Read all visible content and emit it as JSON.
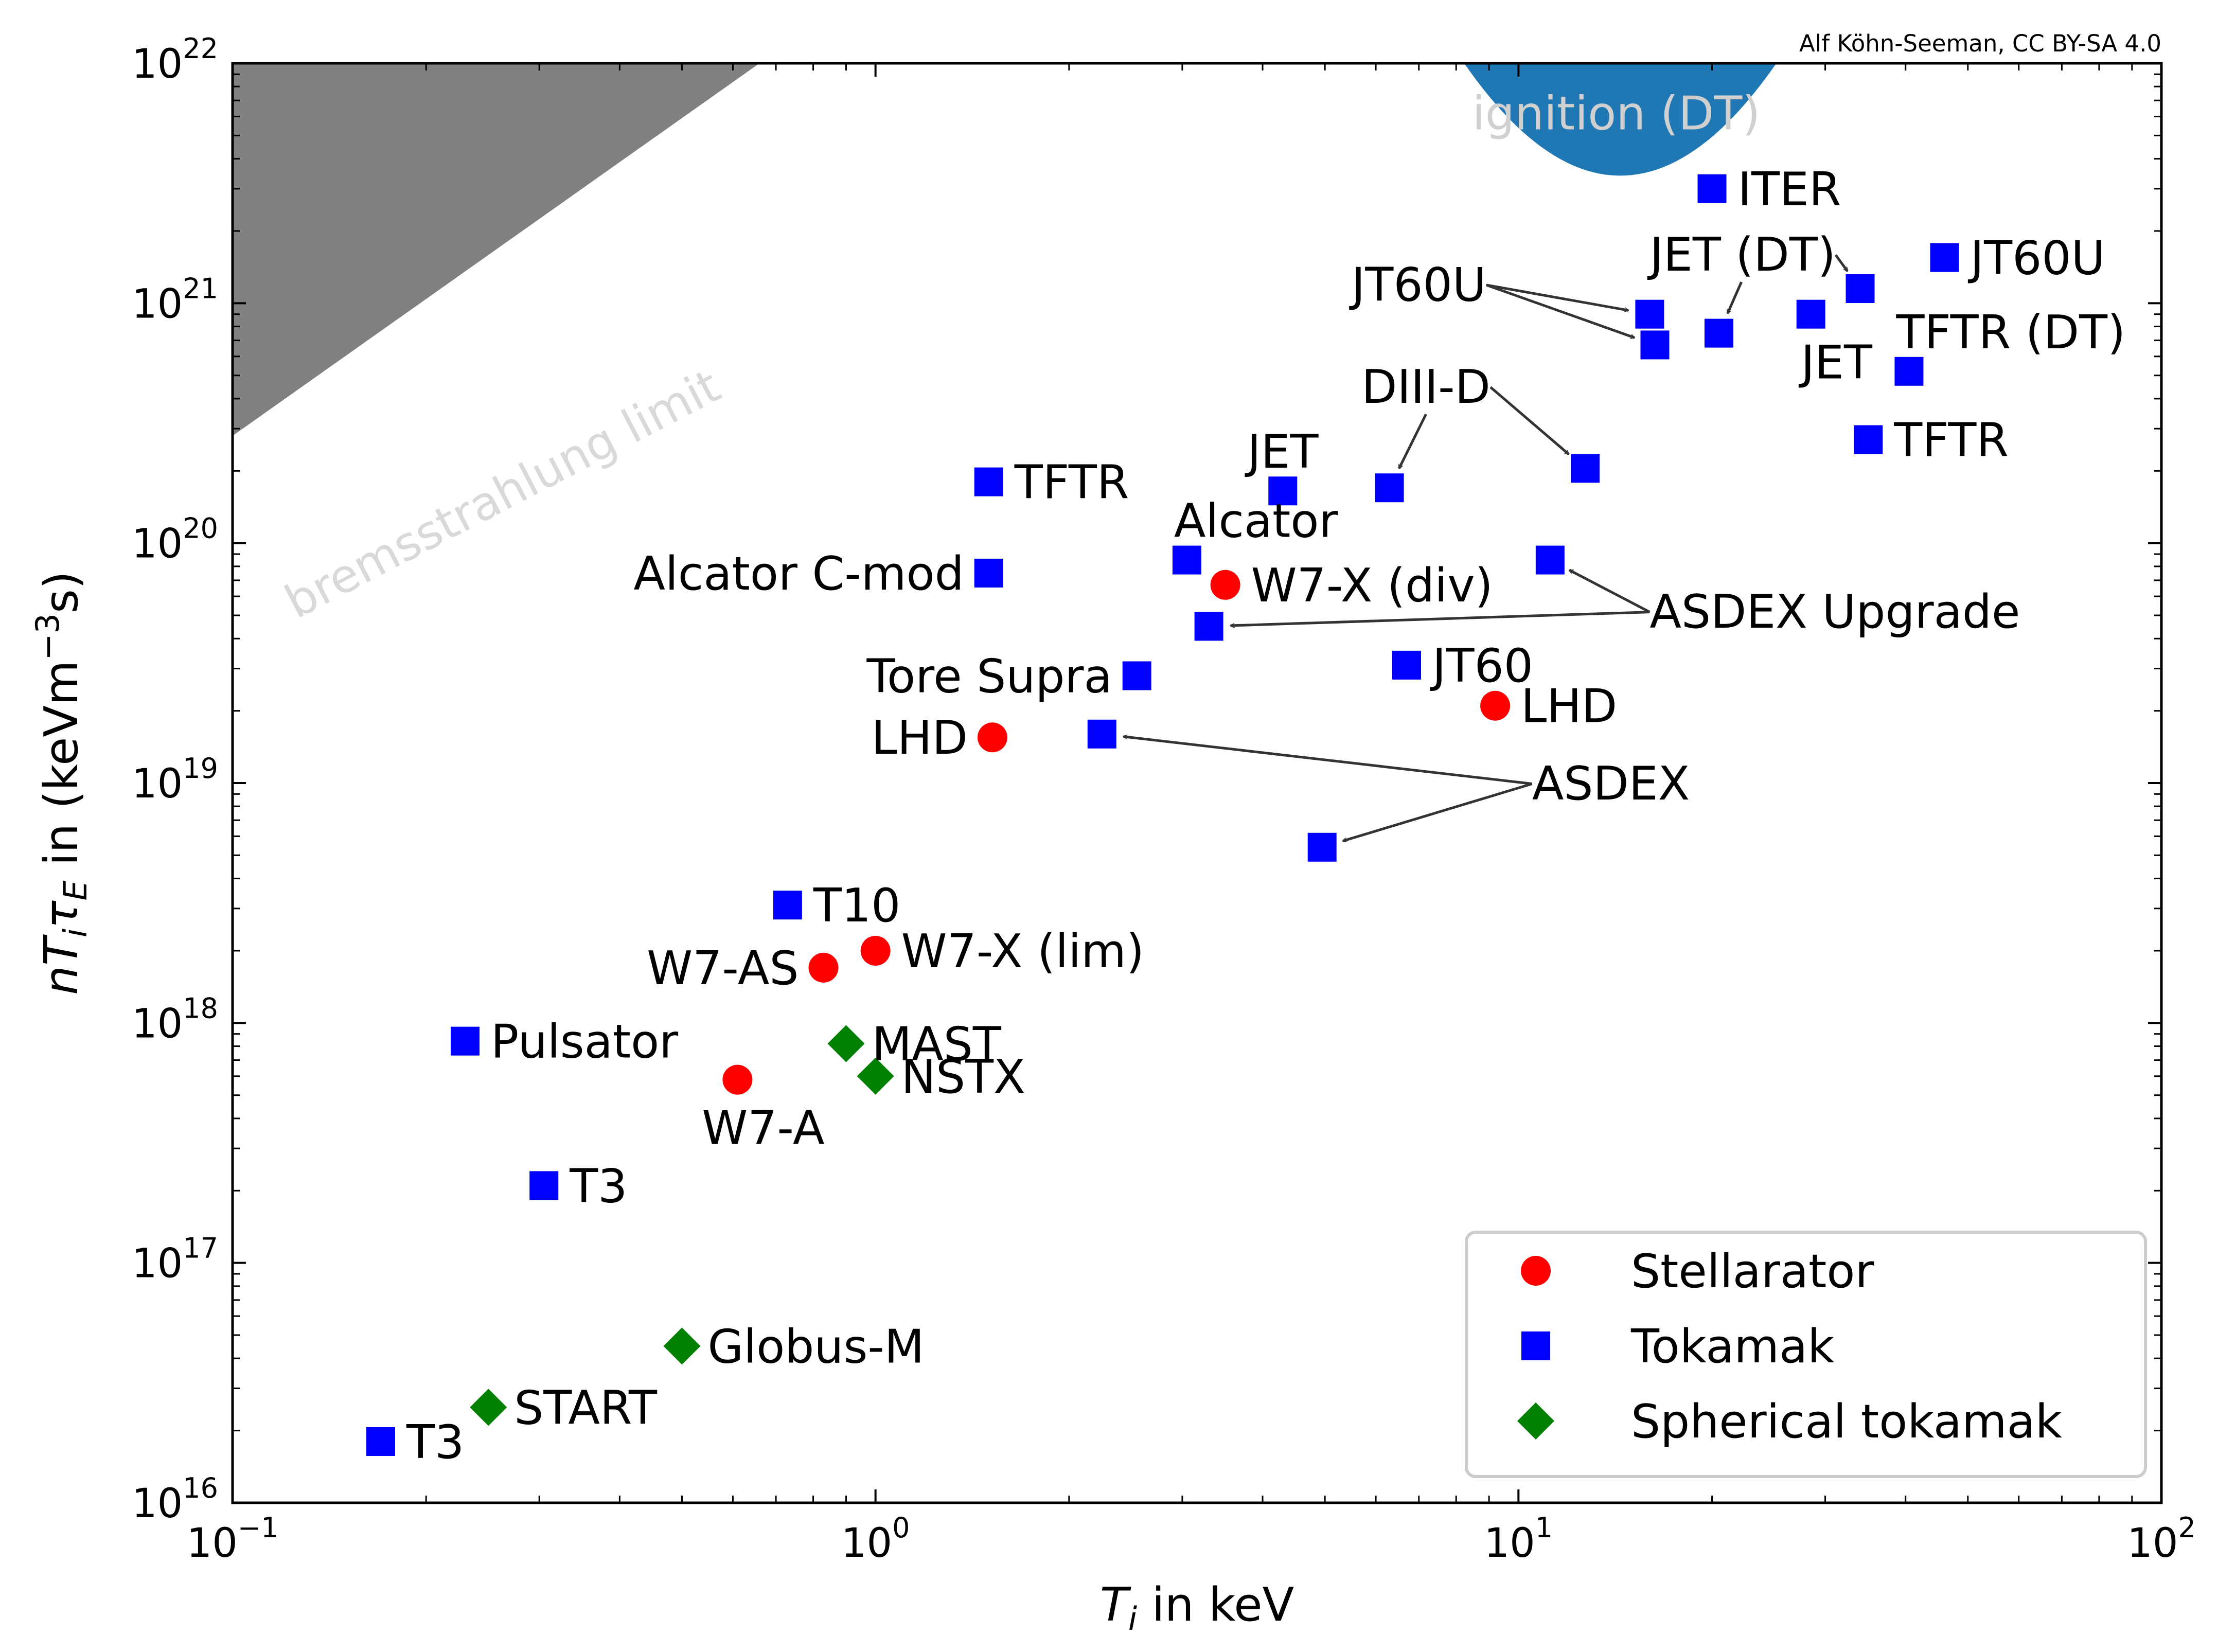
{
  "credit": "Alf Köhn-Seeman, CC BY-SA 4.0",
  "chart_data": {
    "type": "scatter",
    "x_scale": "log",
    "y_scale": "log",
    "xlim": [
      0.1,
      100
    ],
    "ylim": [
      1e+16,
      1e+22
    ],
    "xlabel": {
      "main": "T",
      "sub": "i",
      "rest": " in keV"
    },
    "ylabel": {
      "main": "nT",
      "sub1": "i",
      "tau": "τ",
      "sub2": "E",
      "rest": " in (keVm",
      "sup": "−3",
      "end": "s)"
    },
    "x_ticks": [
      {
        "value": 0.1,
        "base": "10",
        "exp": "−1"
      },
      {
        "value": 1,
        "base": "10",
        "exp": "0"
      },
      {
        "value": 10,
        "base": "10",
        "exp": "1"
      },
      {
        "value": 100,
        "base": "10",
        "exp": "2"
      }
    ],
    "y_ticks": [
      {
        "value": 1e+16,
        "base": "10",
        "exp": "16"
      },
      {
        "value": 1e+17,
        "base": "10",
        "exp": "17"
      },
      {
        "value": 1e+18,
        "base": "10",
        "exp": "18"
      },
      {
        "value": 1e+19,
        "base": "10",
        "exp": "19"
      },
      {
        "value": 1e+20,
        "base": "10",
        "exp": "20"
      },
      {
        "value": 1e+21,
        "base": "10",
        "exp": "21"
      },
      {
        "value": 1e+22,
        "base": "10",
        "exp": "22"
      }
    ],
    "regions": [
      {
        "name": "bremsstrahlung limit",
        "color": "#808080",
        "label_color": "#d9d9d9"
      },
      {
        "name": "ignition (DT)",
        "color": "#1f77b4",
        "label_color": "#d0d0d0"
      }
    ],
    "series": [
      {
        "name": "Stellarator",
        "marker": "circle",
        "color": "#ff0000",
        "points": [
          {
            "x": 3.5,
            "y": 6.7e+19,
            "label": "W7-X (div)",
            "anchor": "right"
          },
          {
            "x": 9.2,
            "y": 2.1e+19,
            "label": "LHD",
            "anchor": "right"
          },
          {
            "x": 1.52,
            "y": 1.55e+19,
            "label": "LHD",
            "anchor": "left"
          },
          {
            "x": 1.0,
            "y": 2e+18,
            "label": "W7-X (lim)",
            "anchor": "right"
          },
          {
            "x": 0.83,
            "y": 1.7e+18,
            "label": "W7-AS",
            "anchor": "left"
          },
          {
            "x": 0.61,
            "y": 5.8e+17,
            "label": "W7-A",
            "anchor": "below"
          }
        ]
      },
      {
        "name": "Tokamak",
        "marker": "square",
        "color": "#0000ff",
        "points": [
          {
            "x": 20,
            "y": 3e+21,
            "label": "ITER",
            "anchor": "right"
          },
          {
            "x": 46,
            "y": 1.55e+21,
            "label": "JT60U",
            "anchor": "right"
          },
          {
            "x": 34,
            "y": 1.15e+21,
            "label": "",
            "anchor": "none"
          },
          {
            "x": 16,
            "y": 9e+20,
            "label": "",
            "anchor": "none"
          },
          {
            "x": 16.3,
            "y": 6.7e+20,
            "label": "",
            "anchor": "none"
          },
          {
            "x": 20.5,
            "y": 7.5e+20,
            "label": "",
            "anchor": "none"
          },
          {
            "x": 28.5,
            "y": 9e+20,
            "label": "JET",
            "anchor": "below"
          },
          {
            "x": 40.5,
            "y": 5.2e+20,
            "label": "TFTR (DT)",
            "anchor": "above-right"
          },
          {
            "x": 35,
            "y": 2.7e+20,
            "label": "TFTR",
            "anchor": "right"
          },
          {
            "x": 12.7,
            "y": 2.05e+20,
            "label": "",
            "anchor": "none"
          },
          {
            "x": 6.3,
            "y": 1.7e+20,
            "label": "",
            "anchor": "none"
          },
          {
            "x": 4.3,
            "y": 1.65e+20,
            "label": "JET",
            "anchor": "above"
          },
          {
            "x": 1.5,
            "y": 1.8e+20,
            "label": "TFTR",
            "anchor": "right"
          },
          {
            "x": 1.5,
            "y": 7.5e+19,
            "label": "Alcator C-mod",
            "anchor": "left"
          },
          {
            "x": 3.05,
            "y": 8.5e+19,
            "label": "Alcator",
            "anchor": "above-right"
          },
          {
            "x": 11.2,
            "y": 8.5e+19,
            "label": "",
            "anchor": "none"
          },
          {
            "x": 3.3,
            "y": 4.5e+19,
            "label": "",
            "anchor": "none"
          },
          {
            "x": 6.7,
            "y": 3.1e+19,
            "label": "JT60",
            "anchor": "right"
          },
          {
            "x": 2.55,
            "y": 2.8e+19,
            "label": "Tore Supra",
            "anchor": "left"
          },
          {
            "x": 2.25,
            "y": 1.6e+19,
            "label": "",
            "anchor": "none"
          },
          {
            "x": 4.95,
            "y": 5.4e+18,
            "label": "",
            "anchor": "none"
          },
          {
            "x": 0.73,
            "y": 3.1e+18,
            "label": "T10",
            "anchor": "right"
          },
          {
            "x": 0.23,
            "y": 8.4e+17,
            "label": "Pulsator",
            "anchor": "right"
          },
          {
            "x": 0.305,
            "y": 2.1e+17,
            "label": "T3",
            "anchor": "right"
          },
          {
            "x": 0.17,
            "y": 1.8e+16,
            "label": "T3",
            "anchor": "right"
          }
        ]
      },
      {
        "name": "Spherical tokamak",
        "marker": "diamond",
        "color": "#008000",
        "points": [
          {
            "x": 0.9,
            "y": 8.2e+17,
            "label": "MAST",
            "anchor": "right"
          },
          {
            "x": 1.0,
            "y": 6e+17,
            "label": "NSTX",
            "anchor": "right"
          },
          {
            "x": 0.5,
            "y": 4.5e+16,
            "label": "Globus-M",
            "anchor": "right"
          },
          {
            "x": 0.25,
            "y": 2.5e+16,
            "label": "START",
            "anchor": "right"
          }
        ]
      }
    ],
    "annotations": [
      {
        "text": "JT60U",
        "x": 5.5,
        "y": 1.2e+21,
        "targets": [
          {
            "x": 16,
            "y": 9e+20
          },
          {
            "x": 16.3,
            "y": 6.7e+20
          }
        ]
      },
      {
        "text": "JET (DT)",
        "x": 16,
        "y": 1.6e+21,
        "targets": [
          {
            "x": 20.5,
            "y": 7.5e+20
          },
          {
            "x": 34,
            "y": 1.15e+21
          }
        ]
      },
      {
        "text": "DIII-D",
        "x": 5.7,
        "y": 4.5e+20,
        "targets": [
          {
            "x": 6.3,
            "y": 1.7e+20
          },
          {
            "x": 12.7,
            "y": 2.05e+20
          }
        ]
      },
      {
        "text": "ASDEX Upgrade",
        "x": 16,
        "y": 5.2e+19,
        "targets": [
          {
            "x": 11.2,
            "y": 8.5e+19
          },
          {
            "x": 3.3,
            "y": 4.5e+19
          }
        ]
      },
      {
        "text": "ASDEX",
        "x": 10.5,
        "y": 1e+19,
        "targets": [
          {
            "x": 2.25,
            "y": 1.6e+19
          },
          {
            "x": 4.95,
            "y": 5.4e+18
          }
        ]
      }
    ],
    "legend": {
      "position": "bottom-right",
      "entries": [
        "Stellarator",
        "Tokamak",
        "Spherical tokamak"
      ]
    },
    "grid": false
  }
}
